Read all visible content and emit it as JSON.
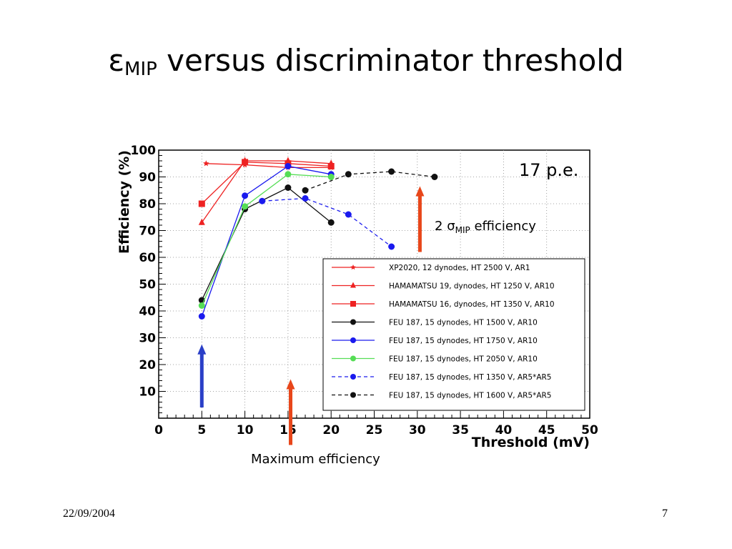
{
  "slide": {
    "title_symbol": "ε",
    "title_subscript": "MIP",
    "title_rest": " versus discriminator threshold",
    "footer_date": "22/09/2004",
    "page_number": "7"
  },
  "annotations": {
    "pe": "17 p.e.",
    "sigma_prefix": "2 ",
    "sigma_symbol": "σ",
    "sigma_sub": "MIP",
    "sigma_suffix": " efficiency",
    "max_efficiency": "Maximum efficiency"
  },
  "arrows": [
    {
      "name": "blue-arrow",
      "x": 5,
      "y_from": 4,
      "y_to": 27,
      "color": "#2a3fc7"
    },
    {
      "name": "red-arrow-max",
      "x": 15.3,
      "y_from": -10,
      "y_to": 14,
      "color": "#e8461a"
    },
    {
      "name": "red-arrow-sigma",
      "x": 30.3,
      "y_from": 62,
      "y_to": 86,
      "color": "#e8461a"
    }
  ],
  "chart_data": {
    "type": "line",
    "xlabel": "Threshold (mV)",
    "ylabel": "Efficiency (%)",
    "xlim": [
      0,
      50
    ],
    "ylim": [
      0,
      100
    ],
    "xticks": [
      0,
      5,
      10,
      15,
      20,
      25,
      30,
      35,
      40,
      45,
      50
    ],
    "yticks": [
      10,
      20,
      30,
      40,
      50,
      60,
      70,
      80,
      90,
      100
    ],
    "grid": true,
    "legend_position": "bottom-right",
    "series": [
      {
        "name": "XP2020, 12 dynodes, HT 2500 V, AR1",
        "color": "#ee2222",
        "marker": "star",
        "dash": false,
        "x": [
          5.5,
          10,
          15,
          20
        ],
        "y": [
          95,
          94.5,
          93.5,
          93.5
        ]
      },
      {
        "name": "HAMAMATSU 19, dynodes, HT 1250 V, AR10",
        "color": "#ee2222",
        "marker": "triangle",
        "dash": false,
        "x": [
          5,
          10,
          15,
          20
        ],
        "y": [
          73,
          96,
          96,
          95
        ]
      },
      {
        "name": "HAMAMATSU 16, dynodes, HT 1350 V, AR10",
        "color": "#ee2222",
        "marker": "square",
        "dash": false,
        "x": [
          5,
          10,
          15,
          20
        ],
        "y": [
          80,
          95.5,
          95,
          94
        ]
      },
      {
        "name": "FEU 187, 15 dynodes, HT 1500 V, AR10",
        "color": "#111111",
        "marker": "circle",
        "dash": false,
        "x": [
          5,
          10,
          15,
          20
        ],
        "y": [
          44,
          78,
          86,
          73
        ]
      },
      {
        "name": "FEU 187, 15 dynodes, HT 1750 V, AR10",
        "color": "#1a1aee",
        "marker": "circle",
        "dash": false,
        "x": [
          5,
          10,
          15,
          20
        ],
        "y": [
          38,
          83,
          94,
          91
        ]
      },
      {
        "name": "FEU 187, 15 dynodes, HT 2050 V, AR10",
        "color": "#55dd55",
        "marker": "circle",
        "dash": false,
        "x": [
          5,
          10,
          15,
          20
        ],
        "y": [
          42,
          79,
          91,
          90
        ]
      },
      {
        "name": "FEU 187, 15 dynodes, HT 1350 V, AR5*AR5",
        "color": "#1a1aee",
        "marker": "circle",
        "dash": true,
        "x": [
          12,
          17,
          22,
          27
        ],
        "y": [
          81,
          82,
          76,
          64
        ]
      },
      {
        "name": "FEU 187, 15 dynodes, HT 1600 V, AR5*AR5",
        "color": "#111111",
        "marker": "circle",
        "dash": true,
        "x": [
          17,
          22,
          27,
          32
        ],
        "y": [
          85,
          91,
          92,
          90
        ]
      }
    ]
  }
}
